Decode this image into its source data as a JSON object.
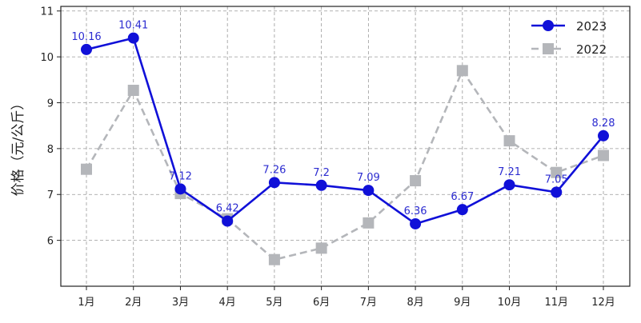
{
  "chart_data": {
    "type": "line",
    "title": "",
    "xlabel": "",
    "ylabel": "价格（元/公斤）",
    "categories": [
      "1月",
      "2月",
      "3月",
      "4月",
      "5月",
      "6月",
      "7月",
      "8月",
      "9月",
      "10月",
      "11月",
      "12月"
    ],
    "ylim": [
      5.0,
      11.1
    ],
    "yticks": [
      6,
      7,
      8,
      9,
      10,
      11
    ],
    "grid": true,
    "legend_position": "top-right",
    "series": [
      {
        "name": "2023",
        "color": "#1010d8",
        "line_style": "solid",
        "marker": "circle",
        "values": [
          10.16,
          10.41,
          7.12,
          6.42,
          7.26,
          7.2,
          7.09,
          6.36,
          6.67,
          7.21,
          7.05,
          8.28
        ],
        "data_labels": [
          "10.16",
          "10.41",
          "7.12",
          "6.42",
          "7.26",
          "7.2",
          "7.09",
          "6.36",
          "6.67",
          "7.21",
          "7.05",
          "8.28"
        ]
      },
      {
        "name": "2022",
        "color": "#b4b6ba",
        "line_style": "dashed",
        "marker": "square",
        "values": [
          7.55,
          9.27,
          7.02,
          6.47,
          5.58,
          5.83,
          6.38,
          7.3,
          9.7,
          8.17,
          7.48,
          7.85
        ]
      }
    ]
  }
}
